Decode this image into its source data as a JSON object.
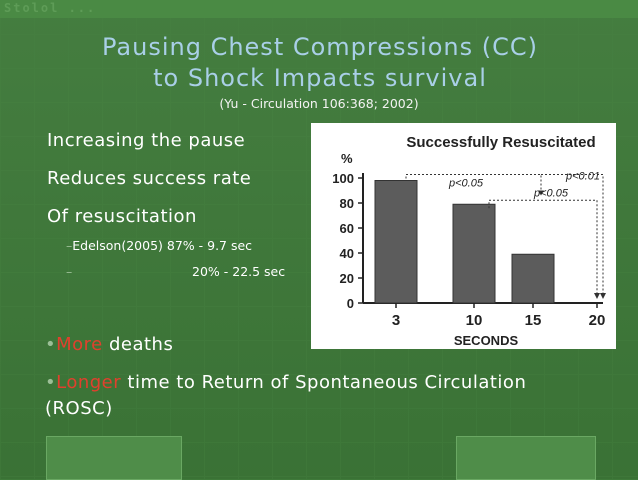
{
  "header": {
    "strip": "Stolol ..."
  },
  "slide": {
    "title_line1": "Pausing Chest Compressions (CC)",
    "title_line2": "to Shock Impacts survival",
    "citation": "(Yu - Circulation 106:368; 2002)",
    "bullets": [
      "Increasing the pause",
      "Reduces success rate",
      "Of resuscitation"
    ],
    "sub_bullets": [
      {
        "dash": "–",
        "source": "Edelson(2005)",
        "value": "87% - 9.7 sec"
      },
      {
        "dash": "–",
        "source": "",
        "value": "20% - 22.5 sec"
      }
    ],
    "more": {
      "mark": "•",
      "highlight": "More",
      "rest": " deaths"
    },
    "longer": {
      "mark": "•",
      "highlight": "Longer",
      "rest": " time to Return of Spontaneous Circulation",
      "line2": "(ROSC)"
    }
  },
  "colors": {
    "background": "#3d7838",
    "title": "#a9cfe7",
    "highlight": "#e0402d",
    "bar": "#5c5c5c"
  },
  "chart_data": {
    "type": "bar",
    "title": "Successfully Resuscitated",
    "ylabel": "%",
    "xlabel": "SECONDS",
    "categories": [
      "3",
      "10",
      "15",
      "20"
    ],
    "values": [
      98,
      79,
      39,
      0
    ],
    "yticks": [
      0,
      20,
      40,
      60,
      80,
      100
    ],
    "ylim": [
      0,
      105
    ],
    "annotations": [
      "p<0.05",
      "p<0.01",
      "p<0.05"
    ]
  }
}
